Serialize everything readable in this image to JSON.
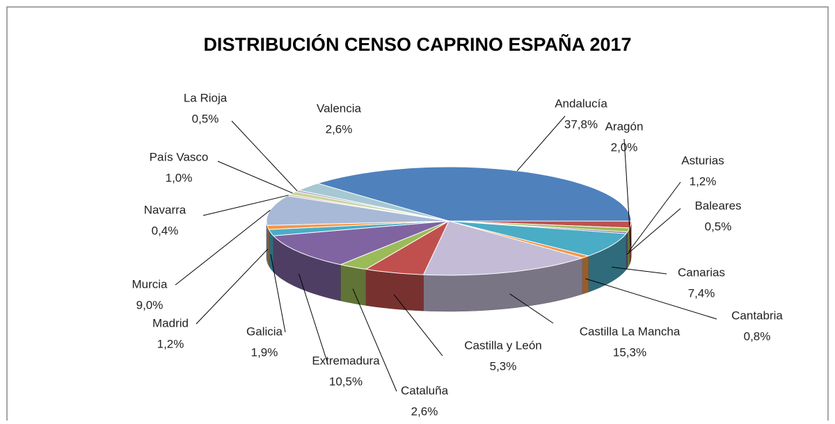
{
  "chart_data": {
    "type": "pie3d",
    "title": "DISTRIBUCIÓN CENSO CAPRINO ESPAÑA 2017",
    "categories": [
      "Andalucía",
      "Aragón",
      "Asturias",
      "Baleares",
      "Canarias",
      "Cantabria",
      "Castilla La Mancha",
      "Castilla y León",
      "Cataluña",
      "Extremadura",
      "Galicia",
      "Madrid",
      "Murcia",
      "Navarra",
      "País Vasco",
      "La Rioja",
      "Valencia"
    ],
    "values": [
      37.8,
      2.0,
      1.2,
      0.5,
      7.4,
      0.8,
      15.3,
      5.3,
      2.6,
      10.5,
      1.9,
      1.2,
      9.0,
      0.4,
      1.0,
      0.5,
      2.6
    ],
    "value_labels": [
      "37,8%",
      "2,0%",
      "1,2%",
      "0,5%",
      "7,4%",
      "0,8%",
      "15,3%",
      "5,3%",
      "2,6%",
      "10,5%",
      "1,9%",
      "1,2%",
      "9,0%",
      "0,4%",
      "1,0%",
      "0,5%",
      "2,6%"
    ],
    "colors": [
      "#4f81bd",
      "#c0504d",
      "#9bbb59",
      "#8064a2",
      "#4bacc6",
      "#f79646",
      "#c4bcd6",
      "#c0504d",
      "#9bbb59",
      "#8064a2",
      "#4bacc6",
      "#f79646",
      "#a7b9d6",
      "#d8a9a8",
      "#c3d69b",
      "#b3a2c7",
      "#a5c8d2"
    ]
  }
}
